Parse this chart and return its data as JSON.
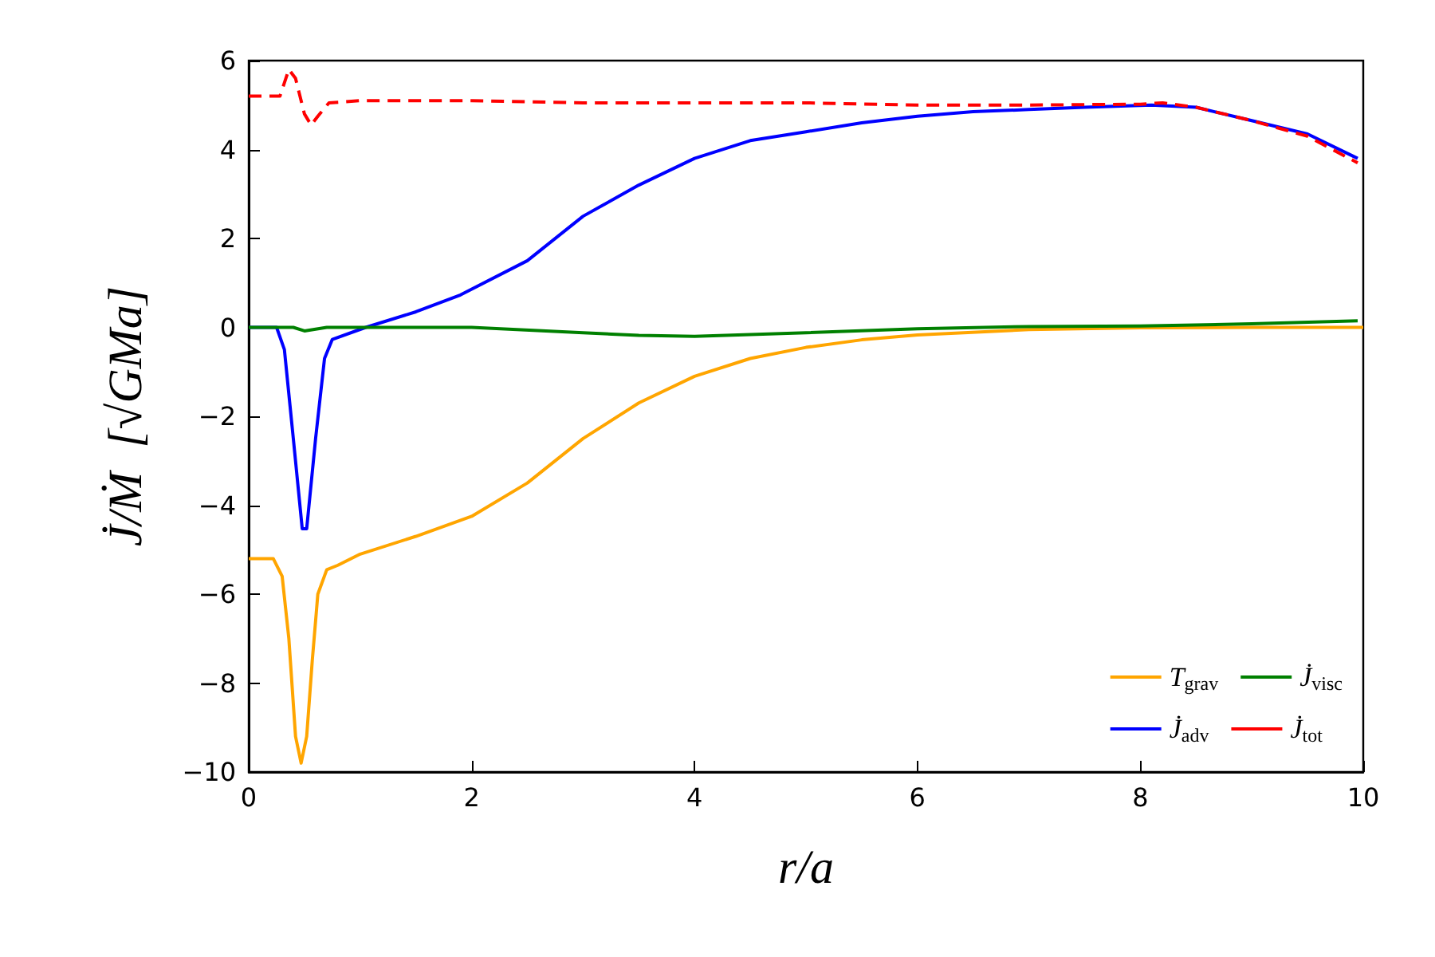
{
  "chart_data": {
    "type": "line",
    "xlabel": "r/a",
    "ylabel": "J̇/Ṁ  [√GMa]",
    "xlim": [
      0,
      10
    ],
    "xticks": [
      0,
      2,
      4,
      6,
      8,
      10
    ],
    "ylim": [
      -10,
      6
    ],
    "yticks": [
      -10,
      -8,
      -6,
      -4,
      -2,
      0,
      2,
      4,
      6
    ],
    "grid": false,
    "legend": "bottom right",
    "marker": "none",
    "series": [
      {
        "name": "T$_{grav}$",
        "color": "#ffa500",
        "line_style": "solid",
        "x": [
          0,
          0.22,
          0.3,
          0.36,
          0.42,
          0.47,
          0.52,
          0.57,
          0.62,
          0.7,
          0.8,
          1,
          1.5,
          2,
          2.5,
          3,
          3.5,
          4,
          4.5,
          5,
          5.5,
          6,
          7,
          8,
          9,
          10
        ],
        "values": [
          -5.2,
          -5.2,
          -5.6,
          -7,
          -9.2,
          -9.8,
          -9.2,
          -7.5,
          -6,
          -5.45,
          -5.35,
          -5.1,
          -4.7,
          -4.25,
          -3.5,
          -2.5,
          -1.7,
          -1.1,
          -0.7,
          -0.45,
          -0.28,
          -0.17,
          -0.05,
          -0.01,
          0,
          0
        ]
      },
      {
        "name": "J̇$_{adv}$",
        "color": "#0000ff",
        "line_style": "solid",
        "x": [
          0,
          0.25,
          0.32,
          0.4,
          0.48,
          0.52,
          0.6,
          0.68,
          0.75,
          1.05,
          1.5,
          1.9,
          2.5,
          3,
          3.5,
          4,
          4.5,
          5,
          5.5,
          6,
          6.5,
          7,
          7.5,
          8.1,
          8.5,
          9,
          9.5,
          9.95
        ],
        "values": [
          0,
          0,
          -0.5,
          -2.5,
          -4.53,
          -4.53,
          -2.5,
          -0.7,
          -0.27,
          0,
          0.35,
          0.73,
          1.5,
          2.5,
          3.2,
          3.8,
          4.2,
          4.4,
          4.6,
          4.75,
          4.85,
          4.9,
          4.95,
          5.0,
          4.95,
          4.65,
          4.35,
          3.8
        ]
      },
      {
        "name": "J̇$_{visc}$",
        "color": "#008000",
        "line_style": "solid",
        "x": [
          0,
          0.4,
          0.5,
          0.7,
          2,
          3,
          3.5,
          4,
          5,
          6,
          7,
          8,
          9,
          9.95
        ],
        "values": [
          0,
          0,
          -0.08,
          0,
          0,
          -0.12,
          -0.18,
          -0.2,
          -0.12,
          -0.03,
          0.02,
          0.03,
          0.08,
          0.15
        ]
      },
      {
        "name": "J̇$_{tot}$",
        "color": "#ff0000",
        "line_style": "dashed",
        "x": [
          0,
          0.28,
          0.36,
          0.42,
          0.5,
          0.56,
          0.62,
          0.72,
          1,
          2,
          3,
          4,
          5,
          6,
          7,
          8,
          8.2,
          8.5,
          9,
          9.5,
          9.95
        ],
        "values": [
          5.2,
          5.2,
          5.8,
          5.6,
          4.8,
          4.55,
          4.75,
          5.05,
          5.1,
          5.1,
          5.05,
          5.05,
          5.05,
          5.0,
          5.0,
          5.02,
          5.05,
          4.95,
          4.65,
          4.3,
          3.7
        ]
      }
    ]
  }
}
